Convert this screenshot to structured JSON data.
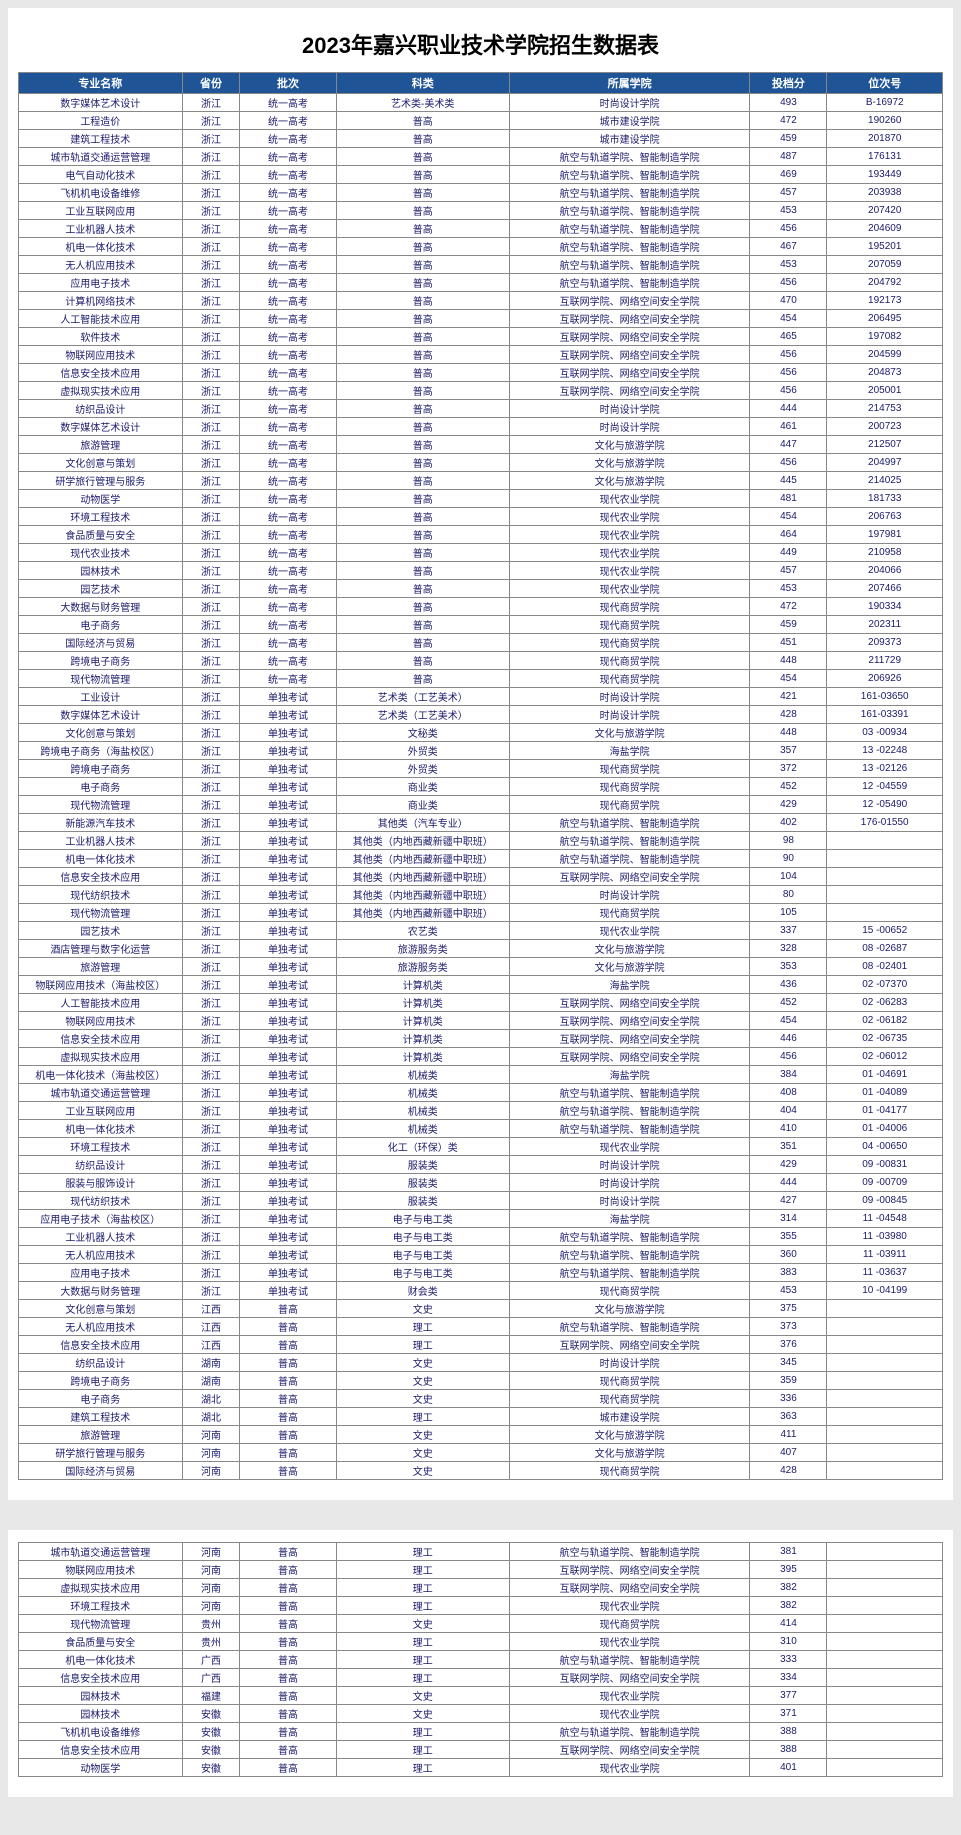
{
  "title": "2023年嘉兴职业技术学院招生数据表",
  "headers": [
    "专业名称",
    "省份",
    "批次",
    "科类",
    "所属学院",
    "投档分",
    "位次号"
  ],
  "style": {
    "header_bg": "#1f5597",
    "header_fg": "#ffffff",
    "cell_fg": "#1a1a6a",
    "border": "#888888",
    "page_bg": "#ffffff",
    "body_bg": "#e8e8e8",
    "title_fontsize": 22,
    "header_fontsize": 11,
    "cell_fontsize": 10,
    "col_widths_pct": [
      17,
      6,
      10,
      18,
      25,
      8,
      12
    ]
  },
  "rows_page1": [
    [
      "数字媒体艺术设计",
      "浙江",
      "统一高考",
      "艺术类-美术类",
      "时尚设计学院",
      "493",
      "B-16972"
    ],
    [
      "工程造价",
      "浙江",
      "统一高考",
      "普高",
      "城市建设学院",
      "472",
      "190260"
    ],
    [
      "建筑工程技术",
      "浙江",
      "统一高考",
      "普高",
      "城市建设学院",
      "459",
      "201870"
    ],
    [
      "城市轨道交通运营管理",
      "浙江",
      "统一高考",
      "普高",
      "航空与轨道学院、智能制造学院",
      "487",
      "176131"
    ],
    [
      "电气自动化技术",
      "浙江",
      "统一高考",
      "普高",
      "航空与轨道学院、智能制造学院",
      "469",
      "193449"
    ],
    [
      "飞机机电设备维修",
      "浙江",
      "统一高考",
      "普高",
      "航空与轨道学院、智能制造学院",
      "457",
      "203938"
    ],
    [
      "工业互联网应用",
      "浙江",
      "统一高考",
      "普高",
      "航空与轨道学院、智能制造学院",
      "453",
      "207420"
    ],
    [
      "工业机器人技术",
      "浙江",
      "统一高考",
      "普高",
      "航空与轨道学院、智能制造学院",
      "456",
      "204609"
    ],
    [
      "机电一体化技术",
      "浙江",
      "统一高考",
      "普高",
      "航空与轨道学院、智能制造学院",
      "467",
      "195201"
    ],
    [
      "无人机应用技术",
      "浙江",
      "统一高考",
      "普高",
      "航空与轨道学院、智能制造学院",
      "453",
      "207059"
    ],
    [
      "应用电子技术",
      "浙江",
      "统一高考",
      "普高",
      "航空与轨道学院、智能制造学院",
      "456",
      "204792"
    ],
    [
      "计算机网络技术",
      "浙江",
      "统一高考",
      "普高",
      "互联网学院、网络空间安全学院",
      "470",
      "192173"
    ],
    [
      "人工智能技术应用",
      "浙江",
      "统一高考",
      "普高",
      "互联网学院、网络空间安全学院",
      "454",
      "206495"
    ],
    [
      "软件技术",
      "浙江",
      "统一高考",
      "普高",
      "互联网学院、网络空间安全学院",
      "465",
      "197082"
    ],
    [
      "物联网应用技术",
      "浙江",
      "统一高考",
      "普高",
      "互联网学院、网络空间安全学院",
      "456",
      "204599"
    ],
    [
      "信息安全技术应用",
      "浙江",
      "统一高考",
      "普高",
      "互联网学院、网络空间安全学院",
      "456",
      "204873"
    ],
    [
      "虚拟现实技术应用",
      "浙江",
      "统一高考",
      "普高",
      "互联网学院、网络空间安全学院",
      "456",
      "205001"
    ],
    [
      "纺织品设计",
      "浙江",
      "统一高考",
      "普高",
      "时尚设计学院",
      "444",
      "214753"
    ],
    [
      "数字媒体艺术设计",
      "浙江",
      "统一高考",
      "普高",
      "时尚设计学院",
      "461",
      "200723"
    ],
    [
      "旅游管理",
      "浙江",
      "统一高考",
      "普高",
      "文化与旅游学院",
      "447",
      "212507"
    ],
    [
      "文化创意与策划",
      "浙江",
      "统一高考",
      "普高",
      "文化与旅游学院",
      "456",
      "204997"
    ],
    [
      "研学旅行管理与服务",
      "浙江",
      "统一高考",
      "普高",
      "文化与旅游学院",
      "445",
      "214025"
    ],
    [
      "动物医学",
      "浙江",
      "统一高考",
      "普高",
      "现代农业学院",
      "481",
      "181733"
    ],
    [
      "环境工程技术",
      "浙江",
      "统一高考",
      "普高",
      "现代农业学院",
      "454",
      "206763"
    ],
    [
      "食品质量与安全",
      "浙江",
      "统一高考",
      "普高",
      "现代农业学院",
      "464",
      "197981"
    ],
    [
      "现代农业技术",
      "浙江",
      "统一高考",
      "普高",
      "现代农业学院",
      "449",
      "210958"
    ],
    [
      "园林技术",
      "浙江",
      "统一高考",
      "普高",
      "现代农业学院",
      "457",
      "204066"
    ],
    [
      "园艺技术",
      "浙江",
      "统一高考",
      "普高",
      "现代农业学院",
      "453",
      "207466"
    ],
    [
      "大数据与财务管理",
      "浙江",
      "统一高考",
      "普高",
      "现代商贸学院",
      "472",
      "190334"
    ],
    [
      "电子商务",
      "浙江",
      "统一高考",
      "普高",
      "现代商贸学院",
      "459",
      "202311"
    ],
    [
      "国际经济与贸易",
      "浙江",
      "统一高考",
      "普高",
      "现代商贸学院",
      "451",
      "209373"
    ],
    [
      "跨境电子商务",
      "浙江",
      "统一高考",
      "普高",
      "现代商贸学院",
      "448",
      "211729"
    ],
    [
      "现代物流管理",
      "浙江",
      "统一高考",
      "普高",
      "现代商贸学院",
      "454",
      "206926"
    ],
    [
      "工业设计",
      "浙江",
      "单独考试",
      "艺术类（工艺美术）",
      "时尚设计学院",
      "421",
      "161-03650"
    ],
    [
      "数字媒体艺术设计",
      "浙江",
      "单独考试",
      "艺术类（工艺美术）",
      "时尚设计学院",
      "428",
      "161-03391"
    ],
    [
      "文化创意与策划",
      "浙江",
      "单独考试",
      "文秘类",
      "文化与旅游学院",
      "448",
      "03 -00934"
    ],
    [
      "跨境电子商务（海盐校区）",
      "浙江",
      "单独考试",
      "外贸类",
      "海盐学院",
      "357",
      "13 -02248"
    ],
    [
      "跨境电子商务",
      "浙江",
      "单独考试",
      "外贸类",
      "现代商贸学院",
      "372",
      "13 -02126"
    ],
    [
      "电子商务",
      "浙江",
      "单独考试",
      "商业类",
      "现代商贸学院",
      "452",
      "12 -04559"
    ],
    [
      "现代物流管理",
      "浙江",
      "单独考试",
      "商业类",
      "现代商贸学院",
      "429",
      "12 -05490"
    ],
    [
      "新能源汽车技术",
      "浙江",
      "单独考试",
      "其他类（汽车专业）",
      "航空与轨道学院、智能制造学院",
      "402",
      "176-01550"
    ],
    [
      "工业机器人技术",
      "浙江",
      "单独考试",
      "其他类（内地西藏新疆中职班）",
      "航空与轨道学院、智能制造学院",
      "98",
      ""
    ],
    [
      "机电一体化技术",
      "浙江",
      "单独考试",
      "其他类（内地西藏新疆中职班）",
      "航空与轨道学院、智能制造学院",
      "90",
      ""
    ],
    [
      "信息安全技术应用",
      "浙江",
      "单独考试",
      "其他类（内地西藏新疆中职班）",
      "互联网学院、网络空间安全学院",
      "104",
      ""
    ],
    [
      "现代纺织技术",
      "浙江",
      "单独考试",
      "其他类（内地西藏新疆中职班）",
      "时尚设计学院",
      "80",
      ""
    ],
    [
      "现代物流管理",
      "浙江",
      "单独考试",
      "其他类（内地西藏新疆中职班）",
      "现代商贸学院",
      "105",
      ""
    ],
    [
      "园艺技术",
      "浙江",
      "单独考试",
      "农艺类",
      "现代农业学院",
      "337",
      "15 -00652"
    ],
    [
      "酒店管理与数字化运营",
      "浙江",
      "单独考试",
      "旅游服务类",
      "文化与旅游学院",
      "328",
      "08 -02687"
    ],
    [
      "旅游管理",
      "浙江",
      "单独考试",
      "旅游服务类",
      "文化与旅游学院",
      "353",
      "08 -02401"
    ],
    [
      "物联网应用技术（海盐校区）",
      "浙江",
      "单独考试",
      "计算机类",
      "海盐学院",
      "436",
      "02 -07370"
    ],
    [
      "人工智能技术应用",
      "浙江",
      "单独考试",
      "计算机类",
      "互联网学院、网络空间安全学院",
      "452",
      "02 -06283"
    ],
    [
      "物联网应用技术",
      "浙江",
      "单独考试",
      "计算机类",
      "互联网学院、网络空间安全学院",
      "454",
      "02 -06182"
    ],
    [
      "信息安全技术应用",
      "浙江",
      "单独考试",
      "计算机类",
      "互联网学院、网络空间安全学院",
      "446",
      "02 -06735"
    ],
    [
      "虚拟现实技术应用",
      "浙江",
      "单独考试",
      "计算机类",
      "互联网学院、网络空间安全学院",
      "456",
      "02 -06012"
    ],
    [
      "机电一体化技术（海盐校区）",
      "浙江",
      "单独考试",
      "机械类",
      "海盐学院",
      "384",
      "01 -04691"
    ],
    [
      "城市轨道交通运营管理",
      "浙江",
      "单独考试",
      "机械类",
      "航空与轨道学院、智能制造学院",
      "408",
      "01 -04089"
    ],
    [
      "工业互联网应用",
      "浙江",
      "单独考试",
      "机械类",
      "航空与轨道学院、智能制造学院",
      "404",
      "01 -04177"
    ],
    [
      "机电一体化技术",
      "浙江",
      "单独考试",
      "机械类",
      "航空与轨道学院、智能制造学院",
      "410",
      "01 -04006"
    ],
    [
      "环境工程技术",
      "浙江",
      "单独考试",
      "化工（环保）类",
      "现代农业学院",
      "351",
      "04 -00650"
    ],
    [
      "纺织品设计",
      "浙江",
      "单独考试",
      "服装类",
      "时尚设计学院",
      "429",
      "09 -00831"
    ],
    [
      "服装与服饰设计",
      "浙江",
      "单独考试",
      "服装类",
      "时尚设计学院",
      "444",
      "09 -00709"
    ],
    [
      "现代纺织技术",
      "浙江",
      "单独考试",
      "服装类",
      "时尚设计学院",
      "427",
      "09 -00845"
    ],
    [
      "应用电子技术（海盐校区）",
      "浙江",
      "单独考试",
      "电子与电工类",
      "海盐学院",
      "314",
      "11 -04548"
    ],
    [
      "工业机器人技术",
      "浙江",
      "单独考试",
      "电子与电工类",
      "航空与轨道学院、智能制造学院",
      "355",
      "11 -03980"
    ],
    [
      "无人机应用技术",
      "浙江",
      "单独考试",
      "电子与电工类",
      "航空与轨道学院、智能制造学院",
      "360",
      "11 -03911"
    ],
    [
      "应用电子技术",
      "浙江",
      "单独考试",
      "电子与电工类",
      "航空与轨道学院、智能制造学院",
      "383",
      "11 -03637"
    ],
    [
      "大数据与财务管理",
      "浙江",
      "单独考试",
      "财会类",
      "现代商贸学院",
      "453",
      "10 -04199"
    ],
    [
      "文化创意与策划",
      "江西",
      "普高",
      "文史",
      "文化与旅游学院",
      "375",
      ""
    ],
    [
      "无人机应用技术",
      "江西",
      "普高",
      "理工",
      "航空与轨道学院、智能制造学院",
      "373",
      ""
    ],
    [
      "信息安全技术应用",
      "江西",
      "普高",
      "理工",
      "互联网学院、网络空间安全学院",
      "376",
      ""
    ],
    [
      "纺织品设计",
      "湖南",
      "普高",
      "文史",
      "时尚设计学院",
      "345",
      ""
    ],
    [
      "跨境电子商务",
      "湖南",
      "普高",
      "文史",
      "现代商贸学院",
      "359",
      ""
    ],
    [
      "电子商务",
      "湖北",
      "普高",
      "文史",
      "现代商贸学院",
      "336",
      ""
    ],
    [
      "建筑工程技术",
      "湖北",
      "普高",
      "理工",
      "城市建设学院",
      "363",
      ""
    ],
    [
      "旅游管理",
      "河南",
      "普高",
      "文史",
      "文化与旅游学院",
      "411",
      ""
    ],
    [
      "研学旅行管理与服务",
      "河南",
      "普高",
      "文史",
      "文化与旅游学院",
      "407",
      ""
    ],
    [
      "国际经济与贸易",
      "河南",
      "普高",
      "文史",
      "现代商贸学院",
      "428",
      ""
    ]
  ],
  "rows_page2": [
    [
      "城市轨道交通运营管理",
      "河南",
      "普高",
      "理工",
      "航空与轨道学院、智能制造学院",
      "381",
      ""
    ],
    [
      "物联网应用技术",
      "河南",
      "普高",
      "理工",
      "互联网学院、网络空间安全学院",
      "395",
      ""
    ],
    [
      "虚拟现实技术应用",
      "河南",
      "普高",
      "理工",
      "互联网学院、网络空间安全学院",
      "382",
      ""
    ],
    [
      "环境工程技术",
      "河南",
      "普高",
      "理工",
      "现代农业学院",
      "382",
      ""
    ],
    [
      "现代物流管理",
      "贵州",
      "普高",
      "文史",
      "现代商贸学院",
      "414",
      ""
    ],
    [
      "食品质量与安全",
      "贵州",
      "普高",
      "理工",
      "现代农业学院",
      "310",
      ""
    ],
    [
      "机电一体化技术",
      "广西",
      "普高",
      "理工",
      "航空与轨道学院、智能制造学院",
      "333",
      ""
    ],
    [
      "信息安全技术应用",
      "广西",
      "普高",
      "理工",
      "互联网学院、网络空间安全学院",
      "334",
      ""
    ],
    [
      "园林技术",
      "福建",
      "普高",
      "文史",
      "现代农业学院",
      "377",
      ""
    ],
    [
      "园林技术",
      "安徽",
      "普高",
      "文史",
      "现代农业学院",
      "371",
      ""
    ],
    [
      "飞机机电设备维修",
      "安徽",
      "普高",
      "理工",
      "航空与轨道学院、智能制造学院",
      "388",
      ""
    ],
    [
      "信息安全技术应用",
      "安徽",
      "普高",
      "理工",
      "互联网学院、网络空间安全学院",
      "388",
      ""
    ],
    [
      "动物医学",
      "安徽",
      "普高",
      "理工",
      "现代农业学院",
      "401",
      ""
    ]
  ]
}
